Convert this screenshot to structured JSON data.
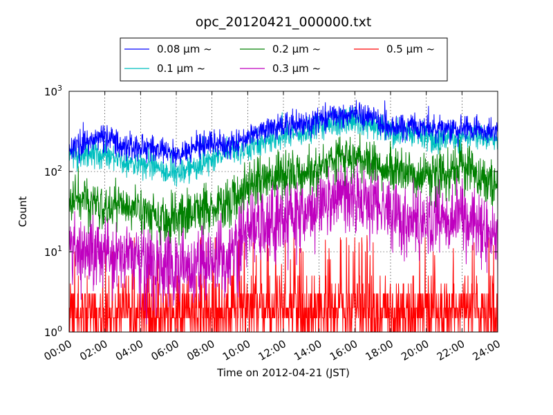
{
  "chart_data": {
    "type": "line",
    "title": "opc_20120421_000000.txt",
    "xlabel": "Time on 2012-04-21 (JST)",
    "ylabel": "Count",
    "x_range_hours": [
      0,
      24
    ],
    "x_ticks": [
      {
        "hour": 0,
        "label": "00:00"
      },
      {
        "hour": 2,
        "label": "02:00"
      },
      {
        "hour": 4,
        "label": "04:00"
      },
      {
        "hour": 6,
        "label": "06:00"
      },
      {
        "hour": 8,
        "label": "08:00"
      },
      {
        "hour": 10,
        "label": "10:00"
      },
      {
        "hour": 12,
        "label": "12:00"
      },
      {
        "hour": 14,
        "label": "14:00"
      },
      {
        "hour": 16,
        "label": "16:00"
      },
      {
        "hour": 18,
        "label": "18:00"
      },
      {
        "hour": 20,
        "label": "20:00"
      },
      {
        "hour": 22,
        "label": "22:00"
      },
      {
        "hour": 24,
        "label": "24:00"
      }
    ],
    "y_scale": "log",
    "ylim": [
      1,
      1000
    ],
    "y_ticks": [
      {
        "value": 1,
        "base": "10",
        "exp": "0"
      },
      {
        "value": 10,
        "base": "10",
        "exp": "1"
      },
      {
        "value": 100,
        "base": "10",
        "exp": "2"
      },
      {
        "value": 1000,
        "base": "10",
        "exp": "3"
      }
    ],
    "grid": true,
    "legend_position": "top-center",
    "legend_columns": 3,
    "series": [
      {
        "name": "0.08 μm ~",
        "color": "#0000ff",
        "noise": 0.05,
        "x": [
          0,
          1,
          2,
          3,
          4,
          5,
          6,
          7,
          8,
          9,
          10,
          11,
          12,
          13,
          14,
          15,
          16,
          17,
          18,
          19,
          20,
          21,
          22,
          23,
          24
        ],
        "y": [
          200,
          220,
          280,
          210,
          200,
          190,
          160,
          200,
          220,
          215,
          280,
          350,
          380,
          390,
          450,
          480,
          550,
          450,
          360,
          380,
          350,
          320,
          340,
          340,
          290
        ]
      },
      {
        "name": "0.1 μm ~",
        "color": "#00bfbf",
        "noise": 0.05,
        "x": [
          0,
          1,
          2,
          3,
          4,
          5,
          6,
          7,
          8,
          9,
          10,
          11,
          12,
          13,
          14,
          15,
          16,
          17,
          18,
          19,
          20,
          21,
          22,
          23,
          24
        ],
        "y": [
          160,
          160,
          170,
          130,
          125,
          110,
          95,
          110,
          145,
          170,
          200,
          240,
          270,
          300,
          360,
          400,
          440,
          360,
          290,
          290,
          260,
          245,
          270,
          265,
          240
        ]
      },
      {
        "name": "0.2 μm ~",
        "color": "#008000",
        "noise": 0.09,
        "x": [
          0,
          1,
          2,
          3,
          4,
          5,
          6,
          7,
          8,
          9,
          10,
          11,
          12,
          13,
          14,
          15,
          16,
          17,
          18,
          19,
          20,
          21,
          22,
          23,
          24
        ],
        "y": [
          48,
          42,
          38,
          35,
          35,
          30,
          25,
          32,
          35,
          42,
          65,
          80,
          90,
          90,
          110,
          140,
          155,
          135,
          110,
          100,
          90,
          85,
          120,
          85,
          75
        ]
      },
      {
        "name": "0.3 μm ~",
        "color": "#bf00bf",
        "noise": 0.14,
        "x": [
          0,
          1,
          2,
          3,
          4,
          5,
          6,
          7,
          8,
          9,
          10,
          11,
          12,
          13,
          14,
          15,
          16,
          17,
          18,
          19,
          20,
          21,
          22,
          23,
          24
        ],
        "y": [
          10,
          10,
          10,
          9,
          8,
          7,
          6,
          7,
          8,
          10,
          18,
          24,
          28,
          30,
          40,
          48,
          50,
          40,
          30,
          25,
          24,
          22,
          35,
          20,
          15
        ]
      },
      {
        "name": "0.5 μm ~",
        "color": "#ff0000",
        "noise": 0,
        "x": [
          0,
          24
        ],
        "y": [
          1.5,
          1.5
        ]
      }
    ]
  }
}
